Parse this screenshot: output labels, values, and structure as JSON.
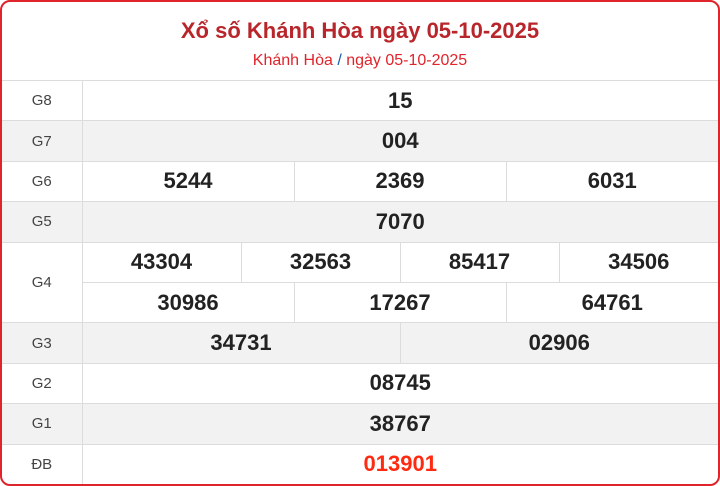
{
  "header": {
    "title": "Xổ số Khánh Hòa ngày 05-10-2025",
    "breadcrumb_province": "Khánh Hòa",
    "breadcrumb_sep": "/",
    "breadcrumb_date": "ngày 05-10-2025"
  },
  "prizes": {
    "g8": {
      "label": "G8",
      "values": [
        "15"
      ]
    },
    "g7": {
      "label": "G7",
      "values": [
        "004"
      ]
    },
    "g6": {
      "label": "G6",
      "values": [
        "5244",
        "2369",
        "6031"
      ]
    },
    "g5": {
      "label": "G5",
      "values": [
        "7070"
      ]
    },
    "g4": {
      "label": "G4",
      "values": [
        "43304",
        "32563",
        "85417",
        "34506",
        "30986",
        "17267",
        "64761"
      ]
    },
    "g3": {
      "label": "G3",
      "values": [
        "34731",
        "02906"
      ]
    },
    "g2": {
      "label": "G2",
      "values": [
        "08745"
      ]
    },
    "g1": {
      "label": "G1",
      "values": [
        "38767"
      ]
    },
    "db": {
      "label": "ĐB",
      "values": [
        "013901"
      ]
    }
  },
  "colors": {
    "border": "#e0242b",
    "title": "#b8262b",
    "special": "#ff2a10"
  }
}
